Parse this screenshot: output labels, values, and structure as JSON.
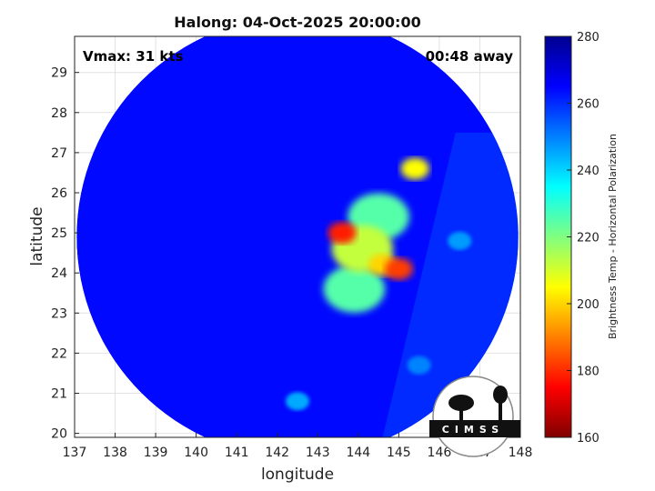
{
  "chart_data": {
    "type": "heatmap",
    "title": "Halong: 04-Oct-2025 20:00:00",
    "xlabel": "longitude",
    "ylabel": "latitude",
    "xlim": [
      137,
      148
    ],
    "ylim": [
      19.9,
      29.9
    ],
    "x_ticks": [
      "137",
      "138",
      "139",
      "140",
      "141",
      "142",
      "143",
      "144",
      "145",
      "146",
      "147",
      "148"
    ],
    "y_ticks": [
      "20",
      "21",
      "22",
      "23",
      "24",
      "25",
      "26",
      "27",
      "28",
      "29"
    ],
    "grid": true,
    "annotations": {
      "vmax": "Vmax: 31 kts",
      "time_away": "00:48 away"
    },
    "colorbar": {
      "label": "Brightness Temp - Horizontal Polarization",
      "range": [
        160,
        280
      ],
      "ticks": [
        "160",
        "180",
        "200",
        "220",
        "240",
        "260",
        "280"
      ],
      "colormap": "jet"
    },
    "swath": {
      "center_lon": 142.5,
      "center_lat": 24.9,
      "radius_deg": 5.45,
      "background_tb": 264
    },
    "features": [
      {
        "lon": 143.6,
        "lat": 25.0,
        "tb": 178
      },
      {
        "lon": 144.1,
        "lat": 24.6,
        "tb": 212
      },
      {
        "lon": 144.6,
        "lat": 24.2,
        "tb": 200
      },
      {
        "lon": 145.0,
        "lat": 24.1,
        "tb": 182
      },
      {
        "lon": 145.4,
        "lat": 26.6,
        "tb": 205
      },
      {
        "lon": 144.5,
        "lat": 25.4,
        "tb": 225
      },
      {
        "lon": 143.9,
        "lat": 23.6,
        "tb": 225
      },
      {
        "lon": 146.5,
        "lat": 24.8,
        "tb": 240
      },
      {
        "lon": 142.5,
        "lat": 20.8,
        "tb": 245
      },
      {
        "lon": 145.5,
        "lat": 21.7,
        "tb": 245
      }
    ]
  },
  "logo": {
    "text": "CIMSS"
  }
}
